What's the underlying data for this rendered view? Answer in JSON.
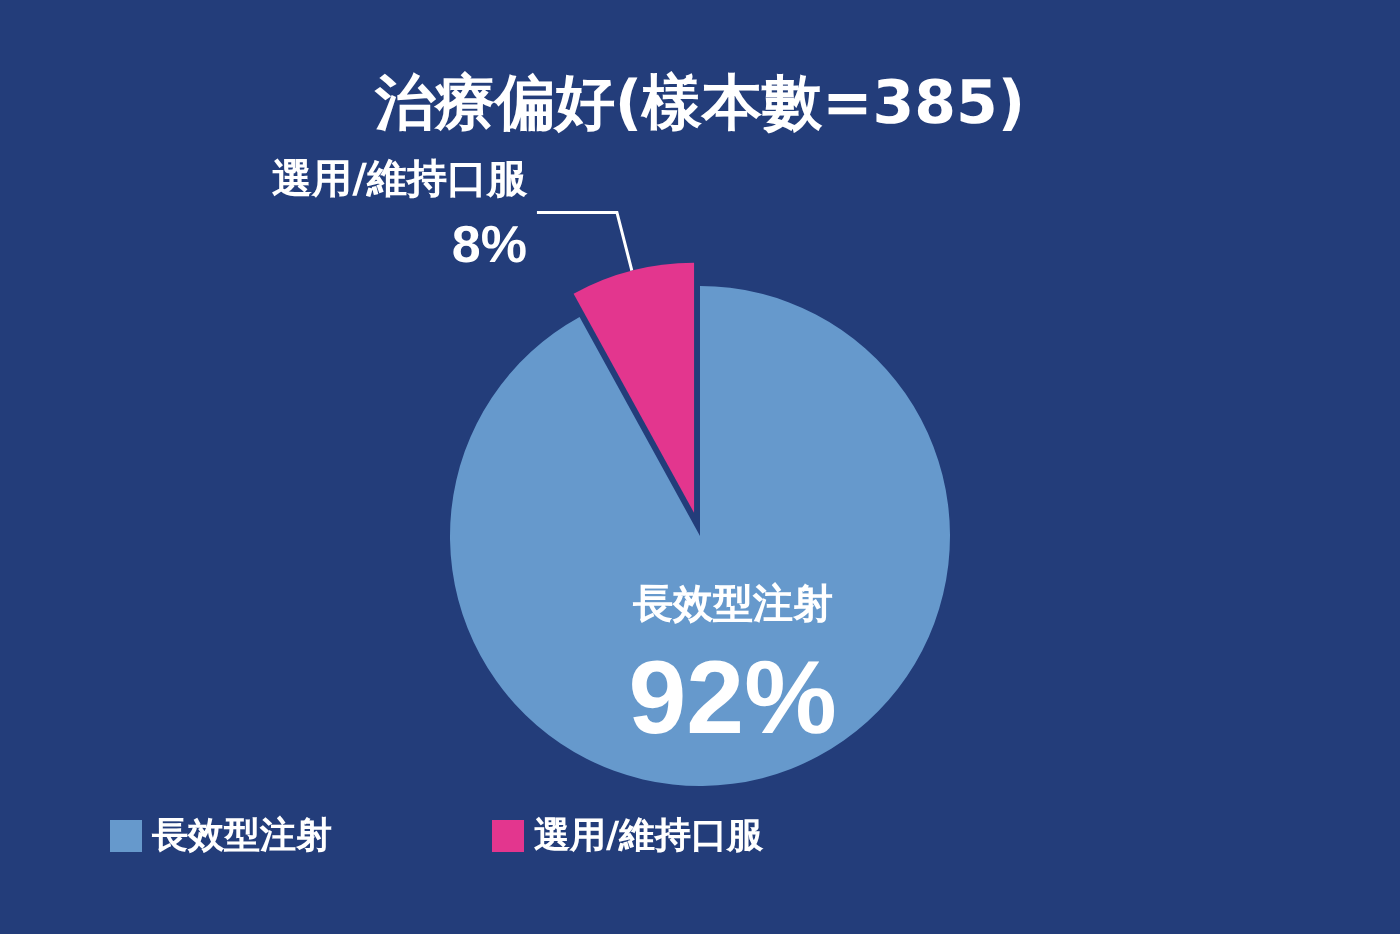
{
  "chart_data": {
    "type": "pie",
    "title": "治療偏好(樣本數=385)",
    "categories": [
      "長效型注射",
      "選用/維持口服"
    ],
    "values": [
      92,
      8
    ],
    "colors": [
      "#6699cc",
      "#e3368e"
    ],
    "value_labels": [
      "92%",
      "8%"
    ],
    "legend": "bottom left"
  }
}
